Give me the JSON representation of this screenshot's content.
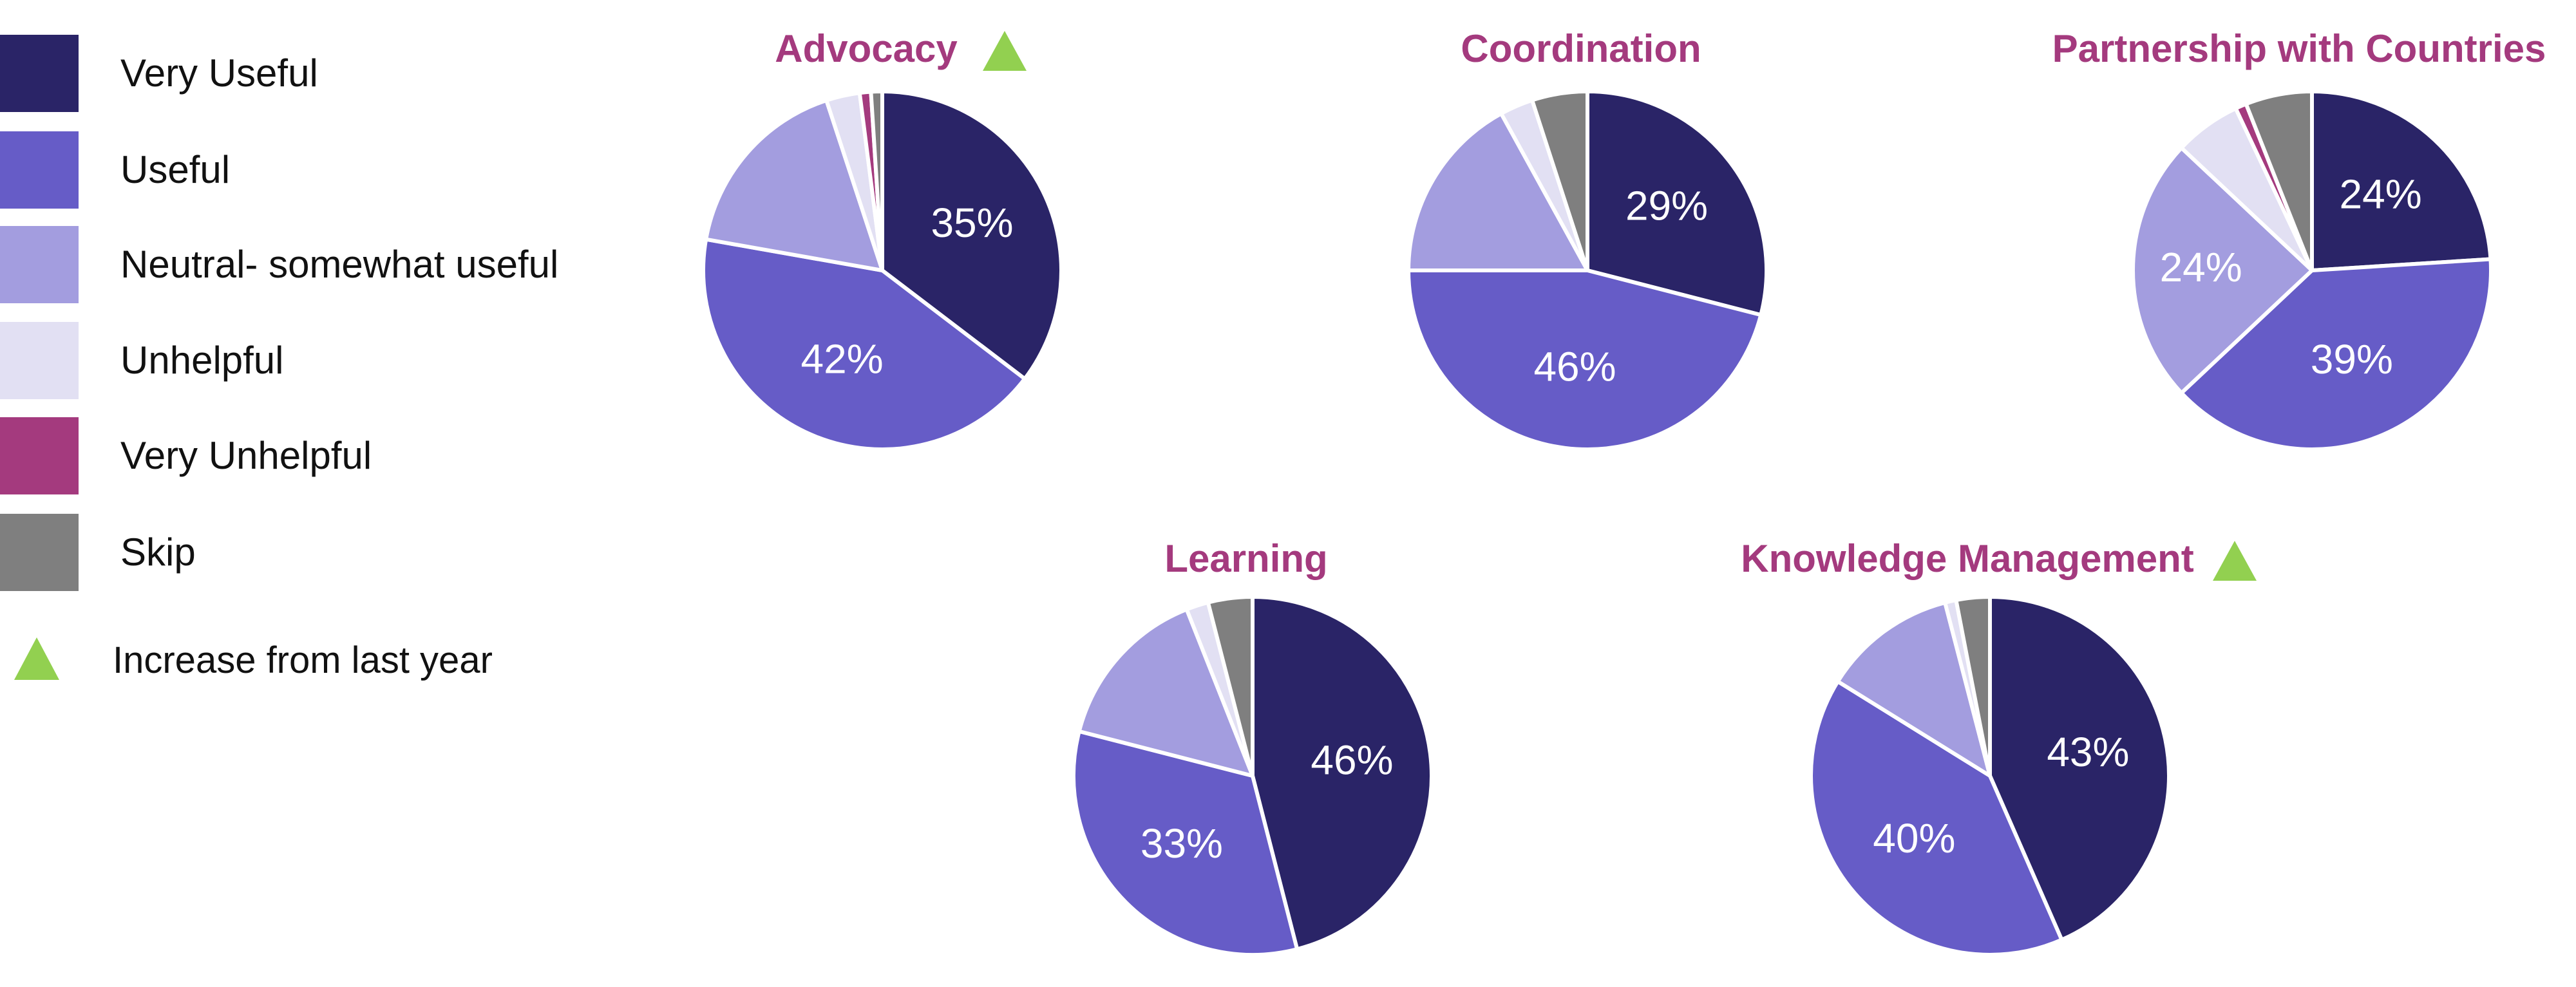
{
  "legend": {
    "items": [
      {
        "label": "Very Useful",
        "color": "#2a2467"
      },
      {
        "label": "Useful",
        "color": "#665cc7"
      },
      {
        "label": "Neutral- somewhat useful",
        "color": "#a39ddf"
      },
      {
        "label": "Unhelpful",
        "color": "#e2e0f3"
      },
      {
        "label": "Very Unhelpful",
        "color": "#a43a7e"
      },
      {
        "label": "Skip",
        "color": "#7f7f7f"
      }
    ],
    "increase_label": "Increase from last  year",
    "increase_color": "#92d050",
    "increase_icon": "triangle-up-icon"
  },
  "chart_data": [
    {
      "type": "pie",
      "title": "Advocacy",
      "increase_marker": true,
      "categories": [
        "Very Useful",
        "Useful",
        "Neutral- somewhat useful",
        "Unhelpful",
        "Very Unhelpful",
        "Skip"
      ],
      "values": [
        35,
        42,
        17,
        3,
        1,
        1
      ],
      "labels": [
        "35%",
        "42%",
        "",
        "",
        "",
        ""
      ]
    },
    {
      "type": "pie",
      "title": "Coordination",
      "increase_marker": false,
      "categories": [
        "Very Useful",
        "Useful",
        "Neutral- somewhat useful",
        "Unhelpful",
        "Very Unhelpful",
        "Skip"
      ],
      "values": [
        29,
        46,
        17,
        3,
        0,
        5
      ],
      "labels": [
        "29%",
        "46%",
        "",
        "",
        "",
        ""
      ]
    },
    {
      "type": "pie",
      "title": "Partnership with Countries",
      "increase_marker": false,
      "categories": [
        "Very Useful",
        "Useful",
        "Neutral- somewhat useful",
        "Unhelpful",
        "Very Unhelpful",
        "Skip"
      ],
      "values": [
        24,
        39,
        24,
        6,
        1,
        6
      ],
      "labels": [
        "24%",
        "39%",
        "24%",
        "",
        "",
        ""
      ]
    },
    {
      "type": "pie",
      "title": "Learning",
      "increase_marker": false,
      "categories": [
        "Very Useful",
        "Useful",
        "Neutral- somewhat useful",
        "Unhelpful",
        "Very Unhelpful",
        "Skip"
      ],
      "values": [
        46,
        33,
        15,
        2,
        0,
        4
      ],
      "labels": [
        "46%",
        "33%",
        "",
        "",
        "",
        ""
      ]
    },
    {
      "type": "pie",
      "title": "Knowledge Management",
      "increase_marker": true,
      "categories": [
        "Very Useful",
        "Useful",
        "Neutral- somewhat useful",
        "Unhelpful",
        "Very Unhelpful",
        "Skip"
      ],
      "values": [
        43,
        40,
        12,
        1,
        0,
        3
      ],
      "labels": [
        "43%",
        "40%",
        "",
        "",
        "",
        ""
      ]
    }
  ]
}
